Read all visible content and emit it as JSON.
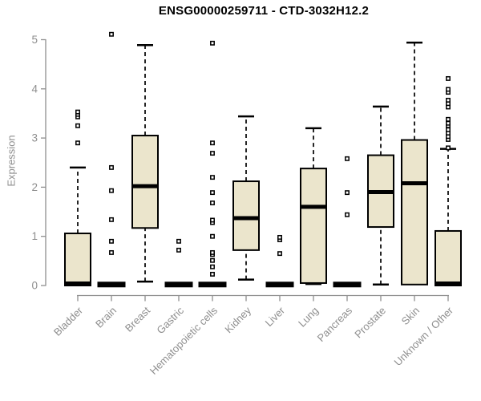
{
  "chart_data": {
    "type": "boxplot",
    "title": "ENSG00000259711 - CTD-3032H12.2",
    "ylabel": "Expression",
    "xlabel": "",
    "ylim": [
      0,
      5
    ],
    "yticks": [
      0,
      1,
      2,
      3,
      4,
      5
    ],
    "legend": "none",
    "grid": false,
    "colors": {
      "box_fill": "#ebe5cc",
      "box_stroke": "#000000",
      "median": "#000000",
      "whisker": "#000000",
      "axis": "#8e8e8e",
      "tick_label": "#8e8e8e",
      "title": "#000000",
      "background": "#ffffff"
    },
    "categories": [
      "Bladder",
      "Brain",
      "Breast",
      "Gastric",
      "Hematopoietic cells",
      "Kidney",
      "Liver",
      "Lung",
      "Pancreas",
      "Prostate",
      "Skin",
      "Unknown / Other"
    ],
    "boxes": [
      {
        "category": "Bladder",
        "whisker_low": null,
        "q1": 0,
        "median": 0.04,
        "q3": 1.06,
        "whisker_high": 2.4,
        "outliers": [
          2.9,
          3.25,
          3.43,
          3.48,
          3.53
        ]
      },
      {
        "category": "Brain",
        "whisker_low": null,
        "q1": 0,
        "median": 0.02,
        "q3": 0.05,
        "whisker_high": null,
        "outliers": [
          0.67,
          0.9,
          1.34,
          1.93,
          2.4,
          5.11
        ]
      },
      {
        "category": "Breast",
        "whisker_low": 0.08,
        "q1": 1.17,
        "median": 2.02,
        "q3": 3.05,
        "whisker_high": 4.89,
        "outliers": []
      },
      {
        "category": "Gastric",
        "whisker_low": null,
        "q1": 0,
        "median": 0.02,
        "q3": 0.05,
        "whisker_high": null,
        "outliers": [
          0.72,
          0.9
        ]
      },
      {
        "category": "Hematopoietic cells",
        "whisker_low": null,
        "q1": 0,
        "median": 0.02,
        "q3": 0.05,
        "whisker_high": null,
        "outliers": [
          0.23,
          0.38,
          0.51,
          0.63,
          0.67,
          1.0,
          1.28,
          1.33,
          1.68,
          1.89,
          2.2,
          2.69,
          2.9,
          4.93
        ]
      },
      {
        "category": "Kidney",
        "whisker_low": 0.12,
        "q1": 0.72,
        "median": 1.37,
        "q3": 2.12,
        "whisker_high": 3.44,
        "outliers": []
      },
      {
        "category": "Liver",
        "whisker_low": null,
        "q1": 0,
        "median": 0.02,
        "q3": 0.05,
        "whisker_high": null,
        "outliers": [
          0.65,
          0.93,
          0.98
        ]
      },
      {
        "category": "Lung",
        "whisker_low": 0.03,
        "q1": 0.05,
        "median": 1.6,
        "q3": 2.38,
        "whisker_high": 3.2,
        "outliers": []
      },
      {
        "category": "Pancreas",
        "whisker_low": null,
        "q1": 0,
        "median": 0.02,
        "q3": 0.05,
        "whisker_high": null,
        "outliers": [
          1.44,
          1.89,
          2.58
        ]
      },
      {
        "category": "Prostate",
        "whisker_low": 0.02,
        "q1": 1.19,
        "median": 1.9,
        "q3": 2.65,
        "whisker_high": 3.64,
        "outliers": []
      },
      {
        "category": "Skin",
        "whisker_low": null,
        "q1": 0.02,
        "median": 2.08,
        "q3": 2.96,
        "whisker_high": 4.94,
        "outliers": []
      },
      {
        "category": "Unknown / Other",
        "whisker_low": null,
        "q1": 0,
        "median": 0.04,
        "q3": 1.11,
        "whisker_high": 2.78,
        "outliers": [
          2.8,
          2.97,
          3.03,
          3.1,
          3.17,
          3.25,
          3.3,
          3.38,
          3.63,
          3.7,
          3.77,
          3.93,
          3.99,
          4.21
        ]
      }
    ]
  }
}
